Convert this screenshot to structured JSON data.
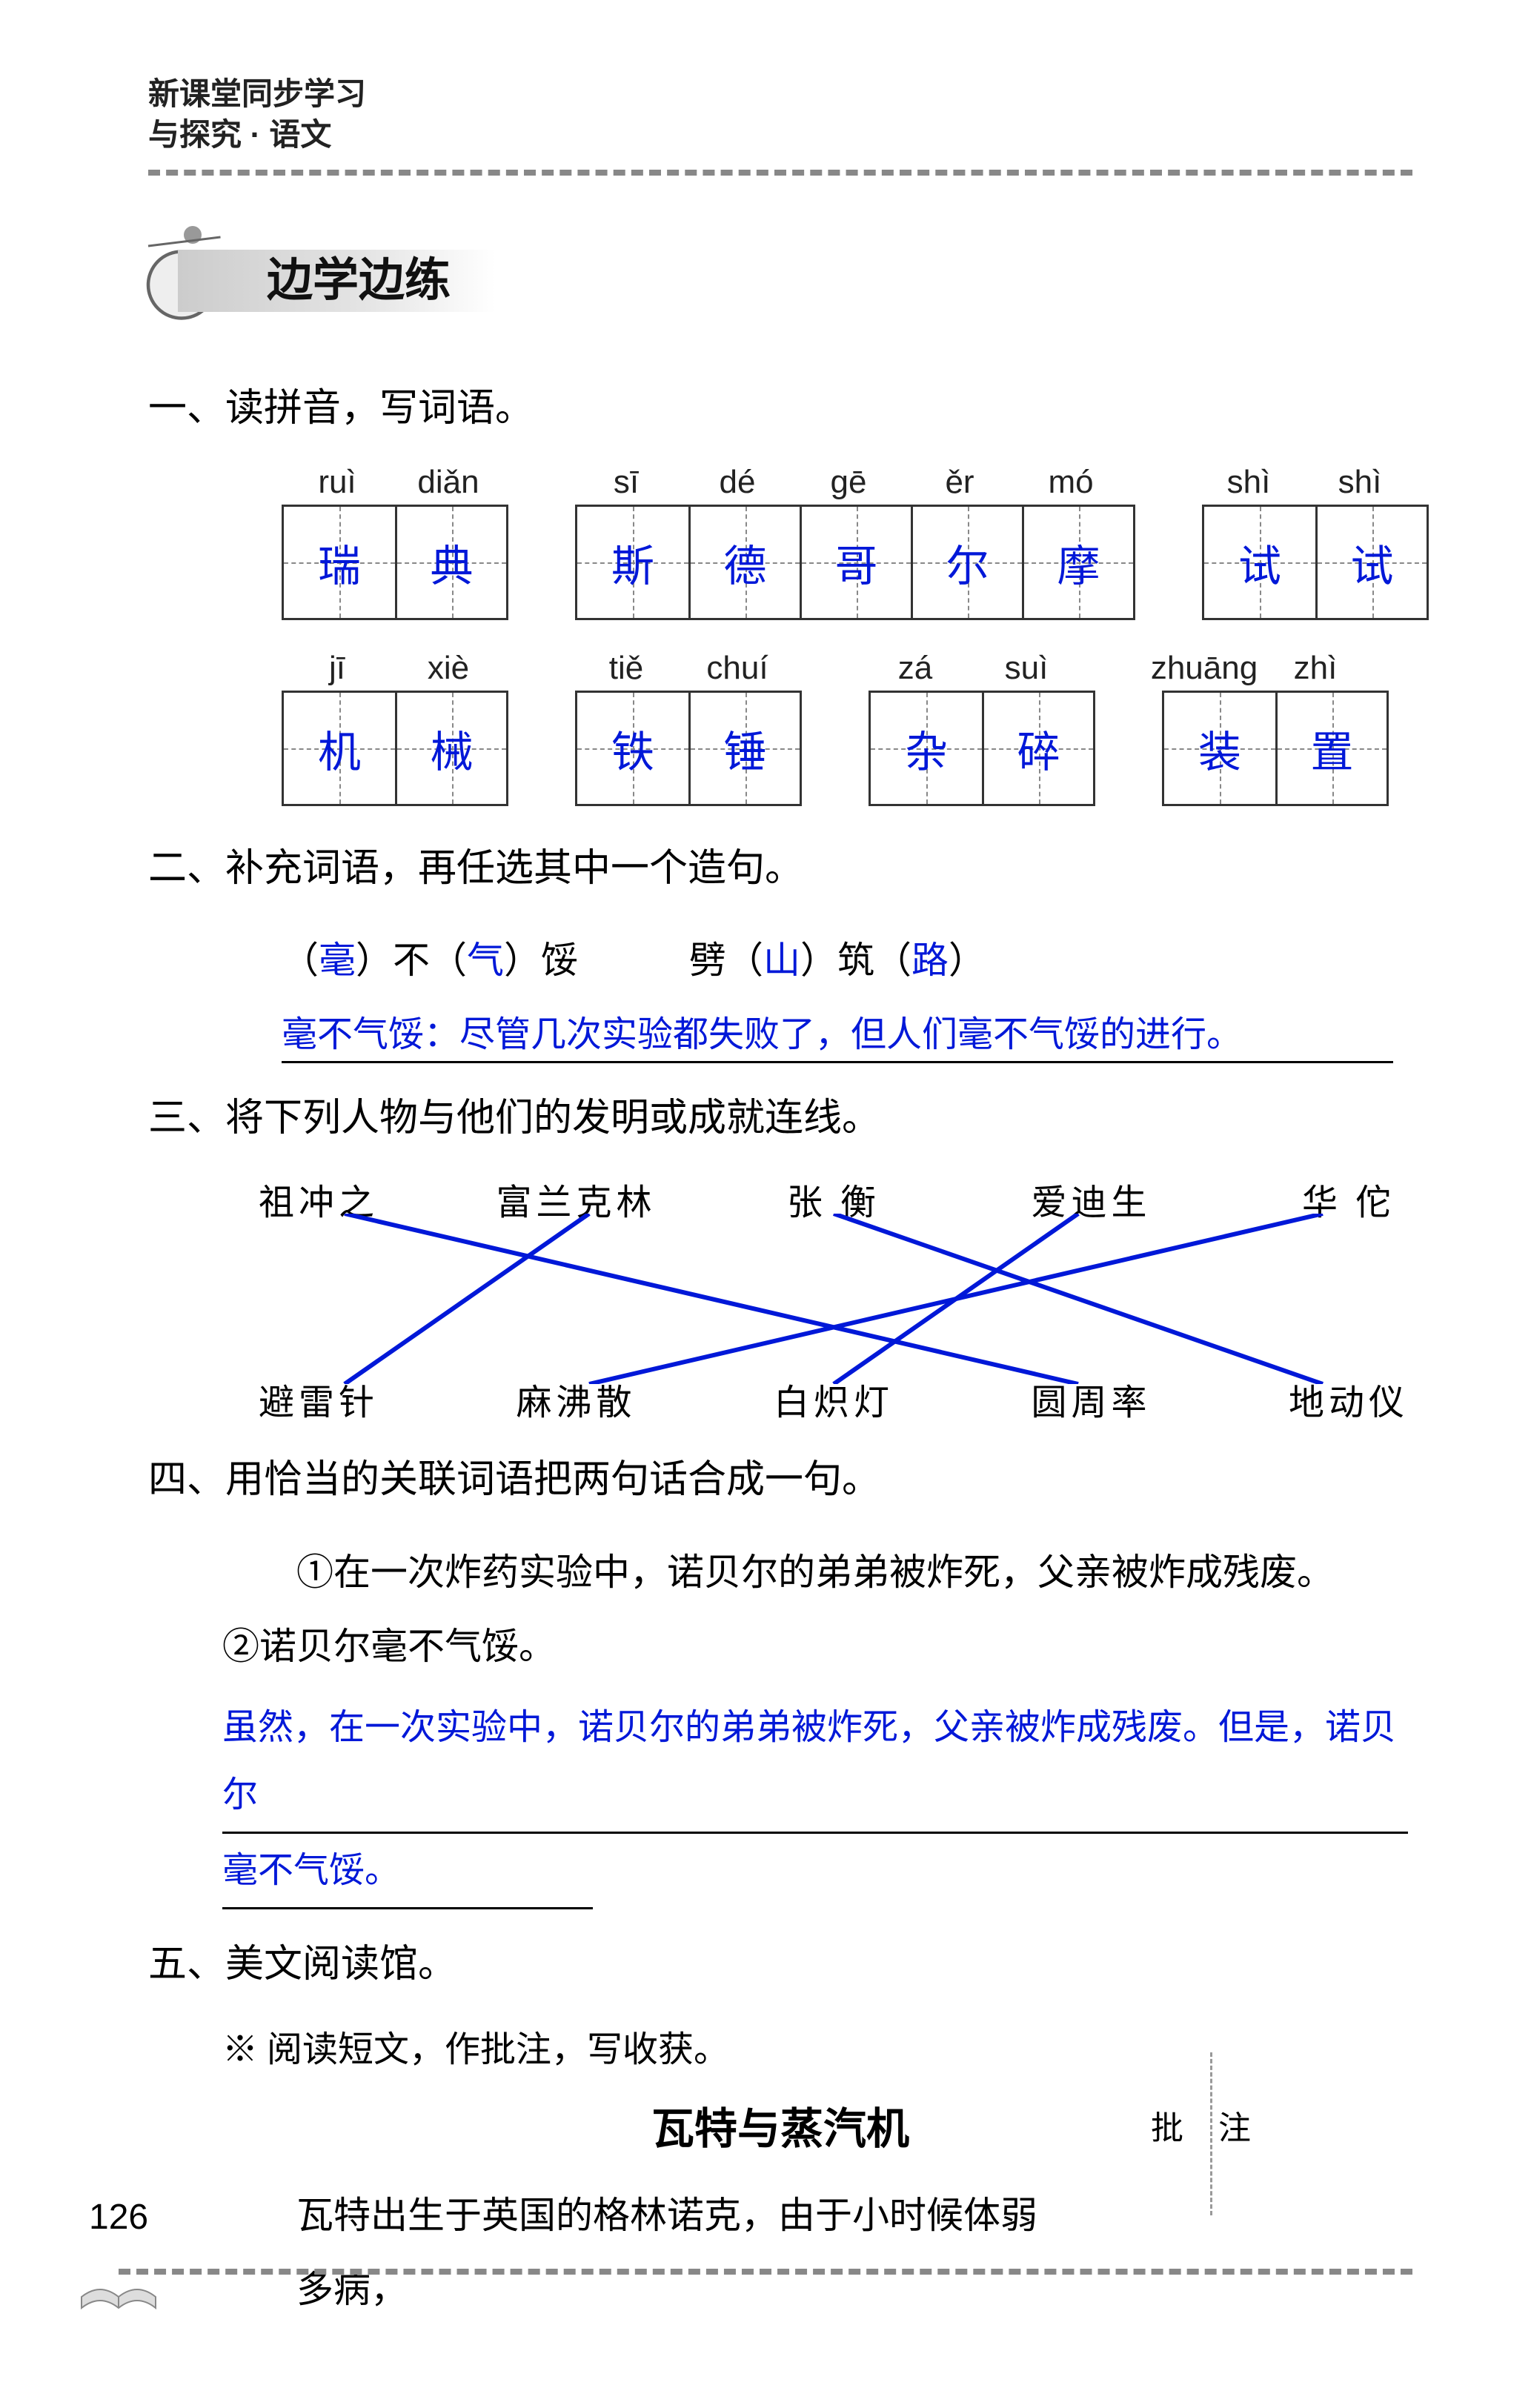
{
  "header": {
    "line1": "新课堂同步学习",
    "line2": "与探究 · 语文"
  },
  "badge": "边学边练",
  "q1": {
    "title": "一、读拼音，写词语。",
    "row1_pinyin": [
      [
        "ruì",
        "diǎn"
      ],
      [
        "sī",
        "dé",
        "gē",
        "ěr",
        "mó"
      ],
      [
        "shì",
        "shì"
      ]
    ],
    "row1_chars": [
      [
        "瑞",
        "典"
      ],
      [
        "斯",
        "德",
        "哥",
        "尔",
        "摩"
      ],
      [
        "试",
        "试"
      ]
    ],
    "row2_pinyin": [
      [
        "jī",
        "xiè"
      ],
      [
        "tiě",
        "chuí"
      ],
      [
        "zá",
        "suì"
      ],
      [
        "zhuāng",
        "zhì"
      ]
    ],
    "row2_chars": [
      [
        "机",
        "械"
      ],
      [
        "铁",
        "锤"
      ],
      [
        "杂",
        "碎"
      ],
      [
        "装",
        "置"
      ]
    ]
  },
  "q2": {
    "title": "二、补充词语，再任选其中一个造句。",
    "blank1_pre": "（",
    "blank1": "毫",
    "blank1_mid": "）不（",
    "blank1b": "气",
    "blank1_suf": "）馁",
    "blank2_pre": "劈（",
    "blank2": "山",
    "blank2_mid": "）筑（",
    "blank2b": "路",
    "blank2_suf": "）",
    "sentence": "毫不气馁：尽管几次实验都失败了，但人们毫不气馁的进行。"
  },
  "q3": {
    "title": "三、将下列人物与他们的发明或成就连线。",
    "top": [
      "祖冲之",
      "富兰克林",
      "张 衡",
      "爱迪生",
      "华 佗"
    ],
    "bottom": [
      "避雷针",
      "麻沸散",
      "白炽灯",
      "圆周率",
      "地动仪"
    ],
    "lines": [
      {
        "from": 0,
        "to": 3
      },
      {
        "from": 1,
        "to": 0
      },
      {
        "from": 2,
        "to": 4
      },
      {
        "from": 3,
        "to": 2
      },
      {
        "from": 4,
        "to": 1
      }
    ],
    "line_color": "#0018d8"
  },
  "q4": {
    "title": "四、用恰当的关联词语把两句话合成一句。",
    "sent": "①在一次炸药实验中，诺贝尔的弟弟被炸死，父亲被炸成残废。 ②诺贝尔毫不气馁。",
    "answer1": "虽然，在一次实验中，诺贝尔的弟弟被炸死，父亲被炸成残废。但是，诺贝尔",
    "answer2": "毫不气馁。"
  },
  "q5": {
    "title": "五、美文阅读馆。",
    "note": "※ 阅读短文，作批注，写收获。",
    "article_title": "瓦特与蒸汽机",
    "annotation": "批 注",
    "body": "瓦特出生于英国的格林诺克，由于小时候体弱多病，"
  },
  "page_number": "126",
  "colors": {
    "answer_blue": "#0018d8",
    "text": "#000000",
    "dash": "#888888"
  }
}
